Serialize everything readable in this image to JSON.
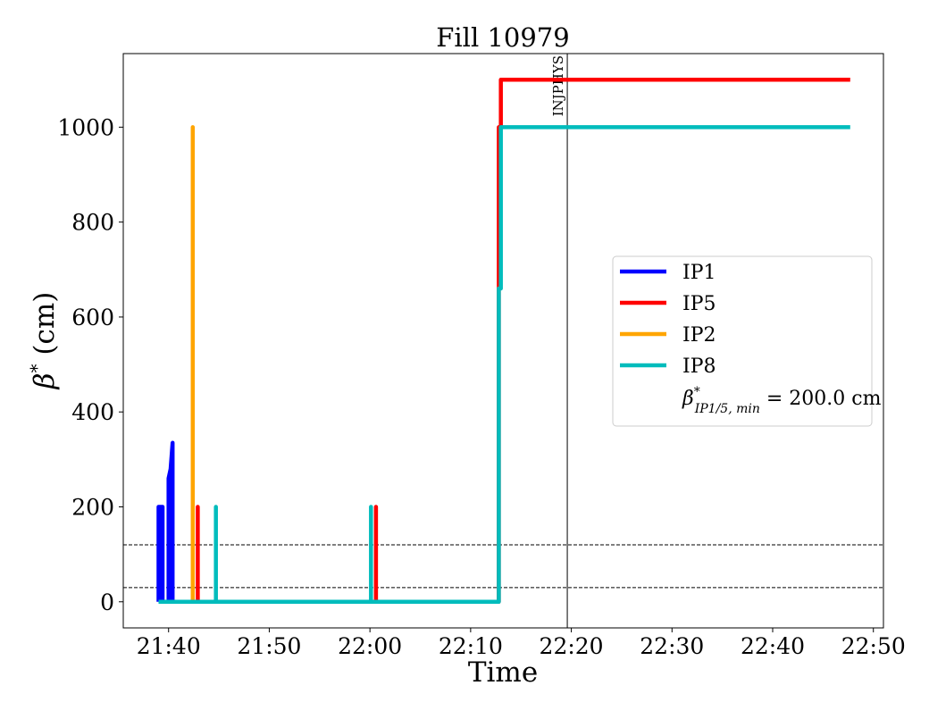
{
  "chart_data": {
    "type": "line",
    "title": "Fill 10979",
    "xlabel": "Time",
    "ylabel_symbol": "β",
    "ylabel_sup": "*",
    "ylabel_unit": "(cm)",
    "x_unit": "minutes",
    "xlim": [
      "21:35:30",
      "22:51:00"
    ],
    "ylim": [
      -55,
      1155
    ],
    "x_ticks": [
      {
        "t": "21:40",
        "label": "21:40"
      },
      {
        "t": "21:50",
        "label": "21:50"
      },
      {
        "t": "22:00",
        "label": "22:00"
      },
      {
        "t": "22:10",
        "label": "22:10"
      },
      {
        "t": "22:20",
        "label": "22:20"
      },
      {
        "t": "22:30",
        "label": "22:30"
      },
      {
        "t": "22:40",
        "label": "22:40"
      },
      {
        "t": "22:50",
        "label": "22:50"
      }
    ],
    "y_ticks": [
      {
        "v": 0,
        "label": "0"
      },
      {
        "v": 200,
        "label": "200"
      },
      {
        "v": 400,
        "label": "400"
      },
      {
        "v": 600,
        "label": "600"
      },
      {
        "v": 800,
        "label": "800"
      },
      {
        "v": 1000,
        "label": "1000"
      }
    ],
    "grid": false,
    "legend_position": "center-right",
    "series": [
      {
        "name": "IP1",
        "color": "#0000ff",
        "points": [
          [
            "21:39:00",
            0
          ],
          [
            "21:39:00",
            200
          ],
          [
            "21:39:24",
            200
          ],
          [
            "21:39:24",
            0
          ],
          [
            "21:40:00",
            0
          ],
          [
            "21:40:00",
            260
          ],
          [
            "21:40:12",
            280
          ],
          [
            "21:40:24",
            335
          ],
          [
            "21:40:24",
            0
          ],
          [
            "22:12:48",
            0
          ]
        ]
      },
      {
        "name": "IP5",
        "color": "#ff0000",
        "points": [
          [
            "21:39:00",
            0
          ],
          [
            "21:42:54",
            0
          ],
          [
            "21:42:54",
            200
          ],
          [
            "21:42:54",
            0
          ],
          [
            "22:00:36",
            0
          ],
          [
            "22:00:36",
            200
          ],
          [
            "22:00:36",
            0
          ],
          [
            "22:12:48",
            0
          ],
          [
            "22:12:48",
            1000
          ],
          [
            "22:13:00",
            1000
          ],
          [
            "22:13:00",
            1100
          ],
          [
            "22:47:42",
            1100
          ]
        ]
      },
      {
        "name": "IP2",
        "color": "#ffa500",
        "points": [
          [
            "21:39:00",
            0
          ],
          [
            "21:42:24",
            0
          ],
          [
            "21:42:24",
            1000
          ],
          [
            "21:42:24",
            0
          ],
          [
            "22:12:48",
            0
          ]
        ]
      },
      {
        "name": "IP8",
        "color": "#00bcbc",
        "points": [
          [
            "21:39:00",
            0
          ],
          [
            "21:44:42",
            0
          ],
          [
            "21:44:42",
            200
          ],
          [
            "21:44:42",
            0
          ],
          [
            "22:00:06",
            0
          ],
          [
            "22:00:06",
            200
          ],
          [
            "22:00:06",
            0
          ],
          [
            "22:12:48",
            0
          ],
          [
            "22:12:48",
            660
          ],
          [
            "22:13:00",
            660
          ],
          [
            "22:13:00",
            1000
          ],
          [
            "22:47:42",
            1000
          ]
        ]
      }
    ],
    "reference_lines": [
      {
        "axis": "y",
        "value": 120,
        "style": "dashed",
        "color": "#000000"
      },
      {
        "axis": "y",
        "value": 30,
        "style": "dashed",
        "color": "#000000"
      },
      {
        "axis": "x",
        "value": "22:19:36",
        "style": "solid",
        "color": "#000000",
        "label": "INJPHYS"
      }
    ],
    "legend_extra": {
      "symbol": "β",
      "sup": "*",
      "sub": "IP1/5, min",
      "text": " = 200.0 cm"
    }
  }
}
